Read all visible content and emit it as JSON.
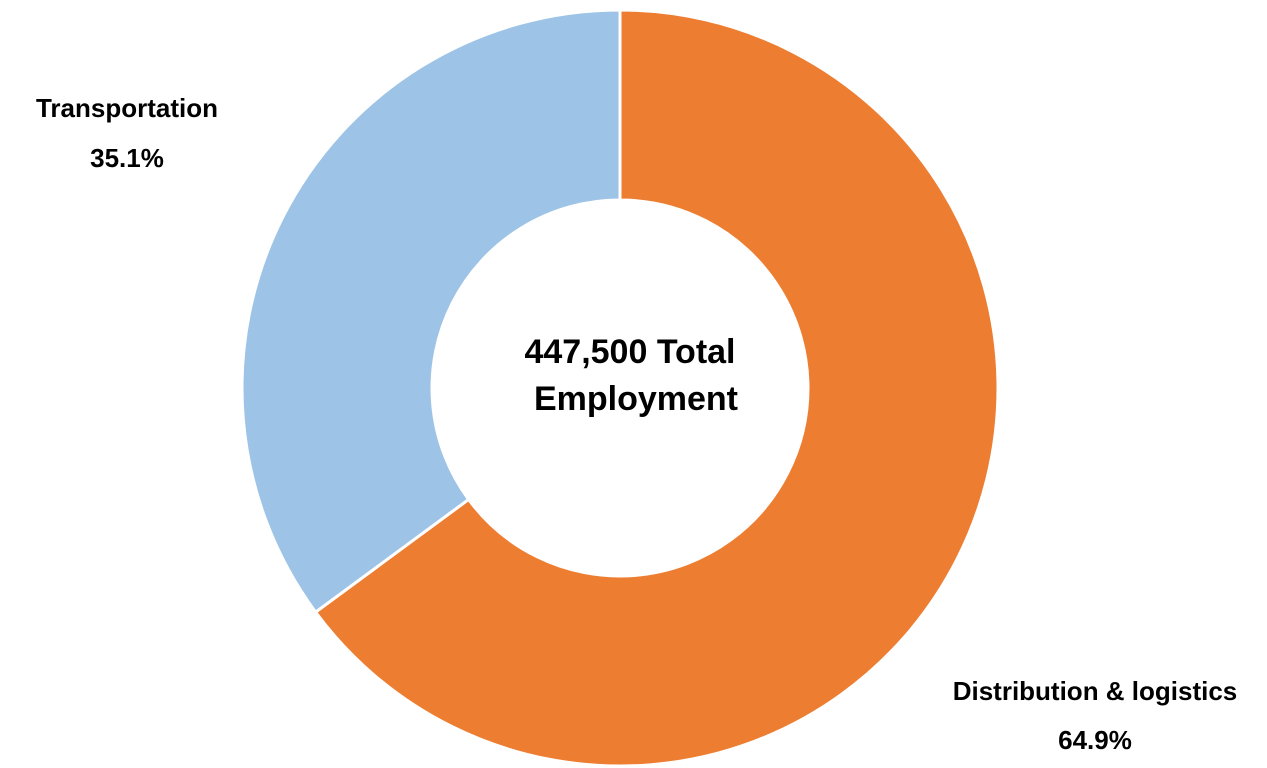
{
  "chart_data": {
    "type": "pie",
    "donut": true,
    "title": "",
    "center_text": [
      "447,500 Total",
      "Employment"
    ],
    "slices": [
      {
        "name": "Distribution & logistics",
        "value": 64.9,
        "value_label": "64.9%",
        "color": "#ED7D31"
      },
      {
        "name": "Transportation",
        "value": 35.1,
        "value_label": "35.1%",
        "color": "#9DC3E6"
      }
    ],
    "start_angle": "12 o'clock",
    "direction": "clockwise",
    "legend": "none",
    "data_labels": "outside"
  }
}
